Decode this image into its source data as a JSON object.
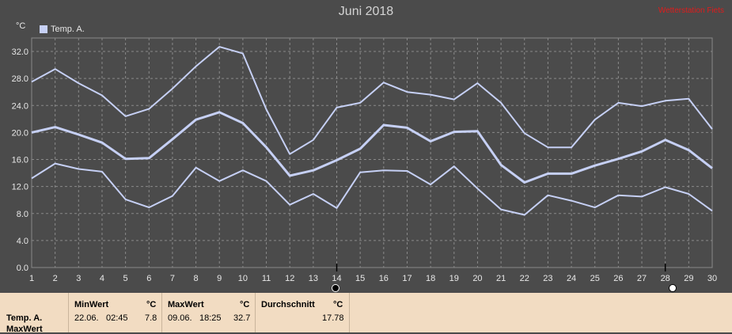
{
  "title": "Juni 2018",
  "watermark": "Wetterstation Fiets",
  "unit": "°C",
  "legend": "Temp. A.",
  "colors": {
    "background": "#4b4b4b",
    "line": "#c6d0f5",
    "grid": "#8a8a8a",
    "stats_bg": "#f2dcc2"
  },
  "chart_data": {
    "type": "line",
    "title": "Juni 2018",
    "ylabel": "°C",
    "ylim": [
      0,
      34
    ],
    "yticks": [
      "0.0",
      "4.0",
      "8.0",
      "12.0",
      "16.0",
      "20.0",
      "24.0",
      "28.0",
      "32.0"
    ],
    "x": [
      1,
      2,
      3,
      4,
      5,
      6,
      7,
      8,
      9,
      10,
      11,
      12,
      13,
      14,
      15,
      16,
      17,
      18,
      19,
      20,
      21,
      22,
      23,
      24,
      25,
      26,
      27,
      28,
      29,
      30
    ],
    "grid": true,
    "legend_position": "top-left",
    "series": [
      {
        "name": "Temp. A.",
        "role": "max",
        "values": [
          27.5,
          29.4,
          27.3,
          25.5,
          22.4,
          23.5,
          26.5,
          29.8,
          32.7,
          31.7,
          23.4,
          16.8,
          18.9,
          23.7,
          24.4,
          27.4,
          26.0,
          25.6,
          24.9,
          27.3,
          24.4,
          19.9,
          17.8,
          17.8,
          21.9,
          24.4,
          23.9,
          24.7,
          25.0,
          20.5
        ]
      },
      {
        "name": "Temp. A.",
        "role": "mean",
        "values": [
          20.0,
          20.8,
          19.7,
          18.5,
          16.1,
          16.2,
          19.0,
          21.9,
          23.0,
          21.4,
          17.8,
          13.6,
          14.4,
          15.9,
          17.6,
          21.1,
          20.7,
          18.7,
          20.1,
          20.2,
          15.2,
          12.6,
          13.9,
          13.9,
          15.1,
          16.1,
          17.2,
          18.9,
          17.4,
          14.7
        ]
      },
      {
        "name": "Temp. A.",
        "role": "min",
        "values": [
          13.2,
          15.4,
          14.6,
          14.2,
          10.1,
          8.9,
          10.6,
          14.8,
          12.8,
          14.4,
          12.8,
          9.3,
          10.9,
          8.8,
          14.1,
          14.4,
          14.3,
          12.3,
          15.0,
          11.7,
          8.6,
          7.8,
          10.7,
          9.9,
          8.9,
          10.7,
          10.5,
          11.9,
          10.9,
          8.4
        ]
      }
    ]
  },
  "stats": {
    "series_label": "Temp. A.",
    "series_label2": "MaxWert",
    "min_header": "MinWert",
    "min_unit": "°C",
    "min_date": "22.06.",
    "min_time": "02:45",
    "min_value": "7.8",
    "max_header": "MaxWert",
    "max_unit": "°C",
    "max_date": "09.06.",
    "max_time": "18:25",
    "max_value": "32.7",
    "avg_header": "Durchschnitt",
    "avg_unit": "°C",
    "avg_value": "17.78"
  }
}
